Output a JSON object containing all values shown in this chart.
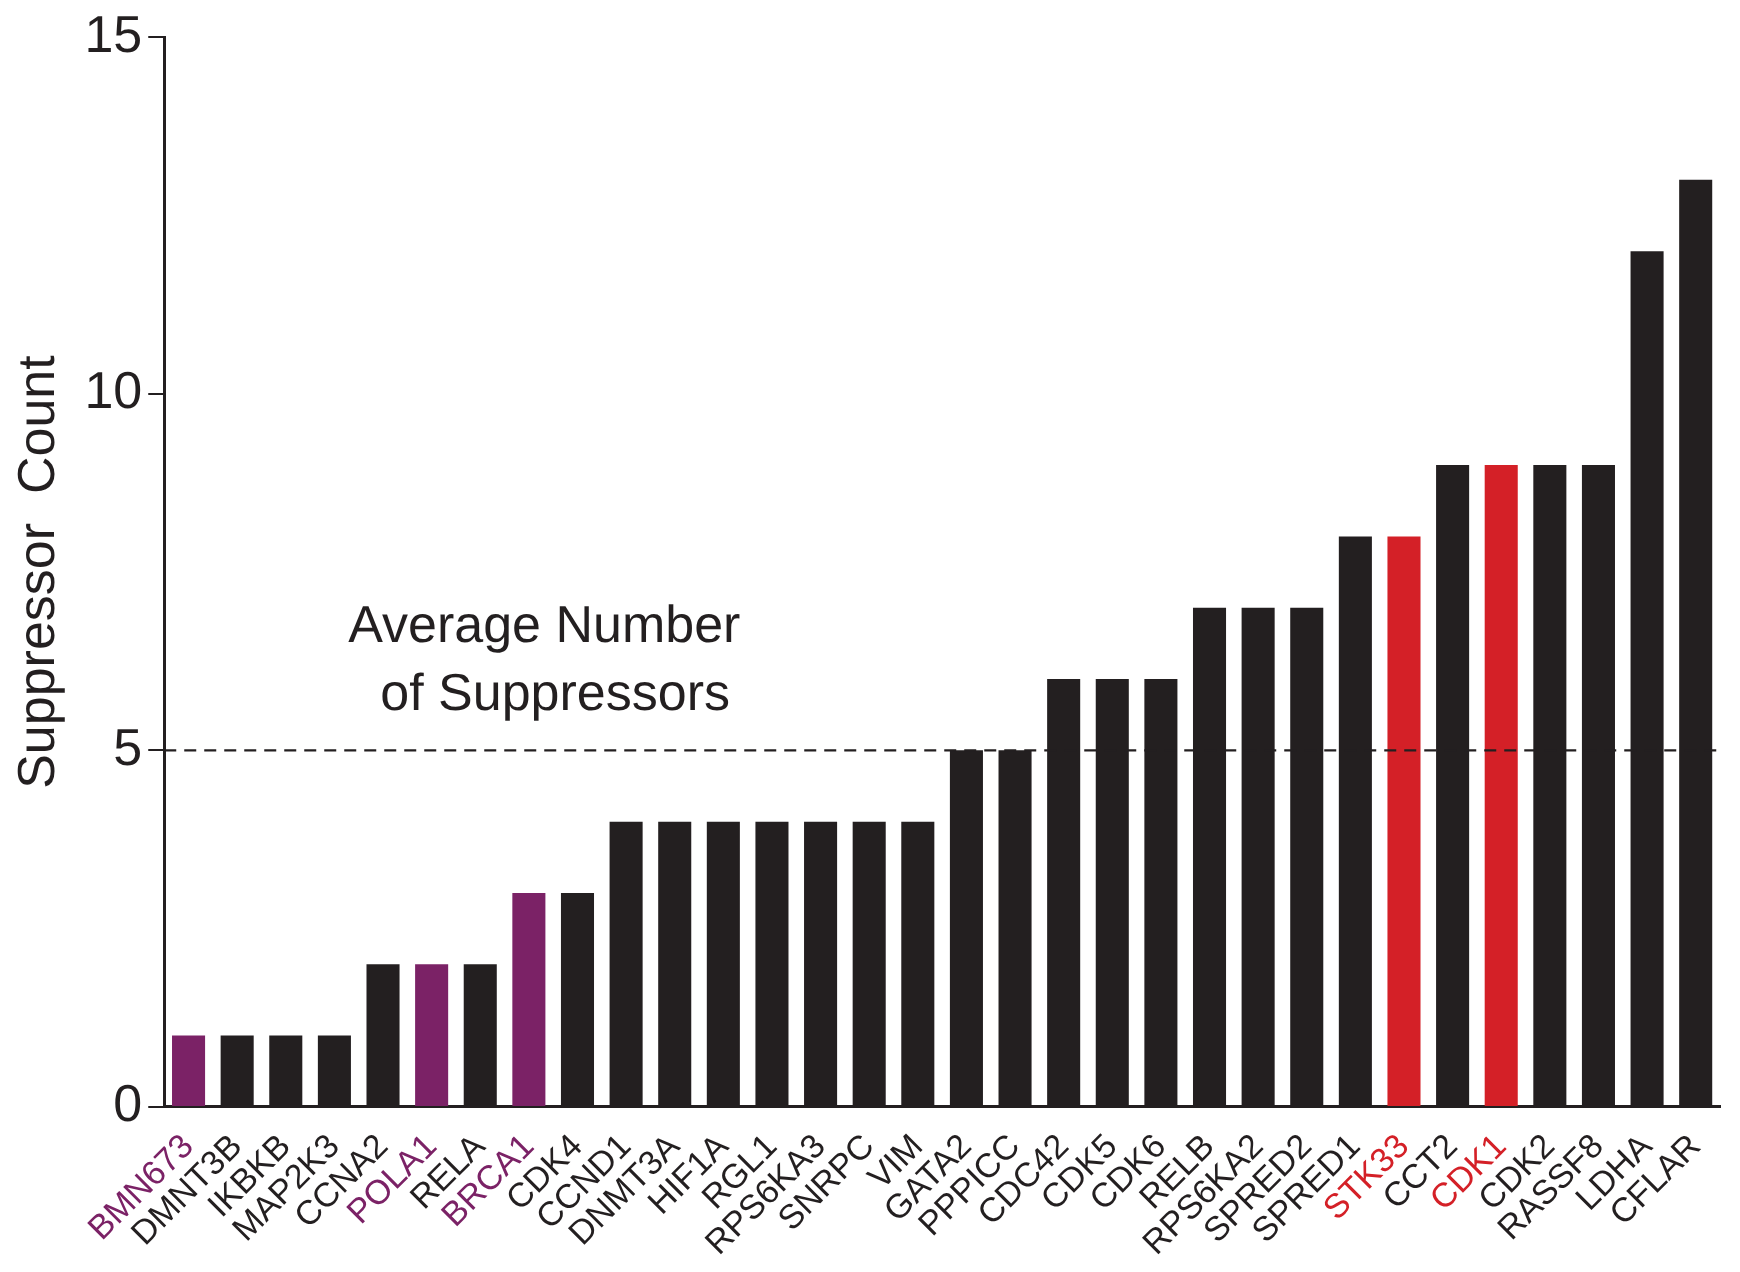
{
  "chart_data": {
    "type": "bar",
    "ylabel": "Suppressor  Count",
    "categories": [
      "BMN673",
      "DMNT3B",
      "IKBKB",
      "MAP2K3",
      "CCNA2",
      "POLA1",
      "RELA",
      "BRCA1",
      "CDK4",
      "CCND1",
      "DNMT3A",
      "HIF1A",
      "RGL1",
      "RPS6KA3",
      "SNRPC",
      "VIM",
      "GATA2",
      "PPPICC",
      "CDC42",
      "CDK5",
      "CDK6",
      "RELB",
      "RPS6KA2",
      "SPRED2",
      "SPRED1",
      "STK33",
      "CCT2",
      "CDK1",
      "CDK2",
      "RASSF8",
      "LDHA",
      "CFLAR"
    ],
    "values": [
      1,
      1,
      1,
      1,
      2,
      2,
      2,
      3,
      3,
      4,
      4,
      4,
      4,
      4,
      4,
      4,
      5,
      5,
      6,
      6,
      6,
      7,
      7,
      7,
      8,
      8,
      9,
      9,
      9,
      9,
      12,
      13
    ],
    "colors": [
      "#7b2266",
      "#231f20",
      "#231f20",
      "#231f20",
      "#231f20",
      "#7b2266",
      "#231f20",
      "#7b2266",
      "#231f20",
      "#231f20",
      "#231f20",
      "#231f20",
      "#231f20",
      "#231f20",
      "#231f20",
      "#231f20",
      "#231f20",
      "#231f20",
      "#231f20",
      "#231f20",
      "#231f20",
      "#231f20",
      "#231f20",
      "#231f20",
      "#231f20",
      "#d42027",
      "#231f20",
      "#d42027",
      "#231f20",
      "#231f20",
      "#231f20",
      "#231f20"
    ],
    "ylim": [
      0,
      15
    ],
    "yticks": [
      0,
      5,
      10,
      15
    ],
    "grid": false,
    "legend": false,
    "ref_lines": [
      {
        "axis": "y",
        "value": 5,
        "label": "Average Number\nof Suppressors",
        "color": "#231f20",
        "line_style": "dashed"
      }
    ]
  }
}
